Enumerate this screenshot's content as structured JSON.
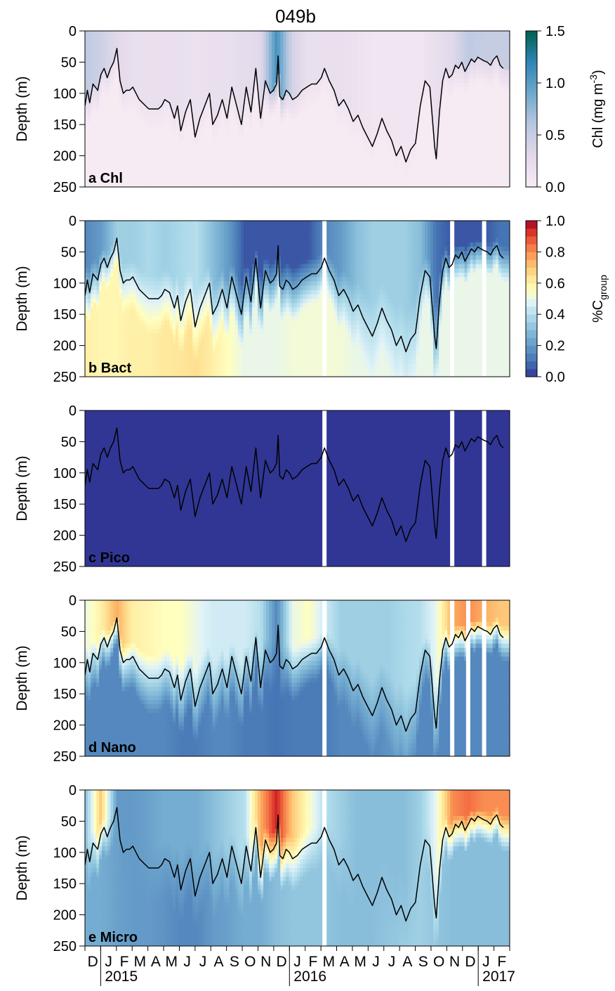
{
  "figure": {
    "title": "049b",
    "years": [
      "2015",
      "2016",
      "2017"
    ],
    "months": [
      "D",
      "J",
      "F",
      "M",
      "A",
      "M",
      "J",
      "J",
      "A",
      "S",
      "O",
      "N",
      "D",
      "J",
      "F",
      "M",
      "A",
      "M",
      "J",
      "J",
      "A",
      "S",
      "O",
      "N",
      "D",
      "J",
      "F"
    ]
  },
  "colorbars": {
    "chl": {
      "label_main": "Chl (mg m",
      "label_sup": "-3",
      "label_close": ")",
      "ticks": [
        "0.0",
        "0.5",
        "1.0",
        "1.5"
      ],
      "range": [
        0,
        1.5
      ]
    },
    "group": {
      "label_main": "%C",
      "label_sub": "group",
      "ticks": [
        "0.0",
        "0.2",
        "0.4",
        "0.6",
        "0.8",
        "1.0"
      ],
      "range": [
        0,
        1
      ]
    }
  },
  "chart_data": [
    {
      "type": "heatmap",
      "panel_label": "a Chl",
      "ylabel": "Depth (m)",
      "yticks": [
        "0",
        "50",
        "100",
        "150",
        "200",
        "250"
      ],
      "ylim": [
        0,
        250
      ],
      "inverted_y": true,
      "colorbar": "chl",
      "value_range": [
        0,
        1.5
      ],
      "gaps": [],
      "x_months": [
        "D",
        "J",
        "F",
        "M",
        "A",
        "M",
        "J",
        "J",
        "A",
        "S",
        "O",
        "N",
        "D",
        "J",
        "F",
        "M",
        "A",
        "M",
        "J",
        "J",
        "A",
        "S",
        "O",
        "N",
        "D",
        "J",
        "F"
      ],
      "overlay_line": "mixed_layer_depth",
      "surface_value_by_month": [
        0.55,
        0.45,
        0.3,
        0.2,
        0.2,
        0.2,
        0.2,
        0.15,
        0.2,
        0.2,
        0.25,
        0.3,
        1.1,
        0.4,
        0.2,
        0.2,
        0.2,
        0.15,
        0.1,
        0.1,
        0.1,
        0.1,
        0.2,
        0.3,
        0.55,
        0.5,
        0.5
      ]
    },
    {
      "type": "heatmap",
      "panel_label": "b Bact",
      "ylabel": "Depth (m)",
      "yticks": [
        "0",
        "50",
        "100",
        "150",
        "200",
        "250"
      ],
      "ylim": [
        0,
        250
      ],
      "inverted_y": true,
      "colorbar": "group",
      "value_range": [
        0,
        1
      ],
      "gaps": [
        "2016-03",
        "2016-11",
        "2017-01"
      ],
      "x_months": [
        "D",
        "J",
        "F",
        "M",
        "A",
        "M",
        "J",
        "J",
        "A",
        "S",
        "O",
        "N",
        "D",
        "J",
        "F",
        "M",
        "A",
        "M",
        "J",
        "J",
        "A",
        "S",
        "O",
        "N",
        "D",
        "J",
        "F"
      ],
      "overlay_line": "mixed_layer_depth",
      "surface_value_by_month": [
        0.15,
        0.2,
        0.35,
        0.35,
        0.38,
        0.35,
        0.38,
        0.4,
        0.3,
        0.2,
        0.05,
        0.05,
        0.05,
        0.05,
        0.05,
        0.15,
        0.2,
        0.3,
        0.35,
        0.35,
        0.35,
        0.3,
        0.1,
        0.05,
        0.05,
        0.05,
        0.1
      ],
      "deep_value_by_month": [
        0.6,
        0.58,
        0.58,
        0.6,
        0.6,
        0.62,
        0.63,
        0.65,
        0.6,
        0.55,
        0.5,
        0.5,
        0.5,
        0.52,
        0.52,
        0.52,
        0.52,
        0.5,
        0.5,
        0.5,
        0.5,
        0.5,
        0.5,
        0.5,
        0.5,
        0.5,
        0.5
      ]
    },
    {
      "type": "heatmap",
      "panel_label": "c Pico",
      "ylabel": "Depth (m)",
      "yticks": [
        "0",
        "50",
        "100",
        "150",
        "200",
        "250"
      ],
      "ylim": [
        0,
        250
      ],
      "inverted_y": true,
      "colorbar": "group",
      "value_range": [
        0,
        1
      ],
      "gaps": [
        "2016-03",
        "2016-11",
        "2017-01"
      ],
      "x_months": [
        "D",
        "J",
        "F",
        "M",
        "A",
        "M",
        "J",
        "J",
        "A",
        "S",
        "O",
        "N",
        "D",
        "J",
        "F",
        "M",
        "A",
        "M",
        "J",
        "J",
        "A",
        "S",
        "O",
        "N",
        "D",
        "J",
        "F"
      ],
      "overlay_line": "mixed_layer_depth",
      "uniform_value": 0.0
    },
    {
      "type": "heatmap",
      "panel_label": "d Nano",
      "ylabel": "Depth (m)",
      "yticks": [
        "0",
        "50",
        "100",
        "150",
        "200",
        "250"
      ],
      "ylim": [
        0,
        250
      ],
      "inverted_y": true,
      "colorbar": "group",
      "value_range": [
        0,
        1
      ],
      "gaps": [
        "2016-03",
        "2016-11",
        "2016-12",
        "2017-01"
      ],
      "x_months": [
        "D",
        "J",
        "F",
        "M",
        "A",
        "M",
        "J",
        "J",
        "A",
        "S",
        "O",
        "N",
        "D",
        "J",
        "F",
        "M",
        "A",
        "M",
        "J",
        "J",
        "A",
        "S",
        "O",
        "N",
        "D",
        "J",
        "F"
      ],
      "overlay_line": "mixed_layer_depth",
      "surface_value_by_month": [
        0.5,
        0.6,
        0.75,
        0.6,
        0.58,
        0.55,
        0.55,
        0.5,
        0.45,
        0.45,
        0.45,
        0.4,
        0.15,
        0.5,
        0.55,
        0.45,
        0.35,
        0.35,
        0.35,
        0.35,
        0.38,
        0.4,
        0.5,
        0.75,
        0.8,
        0.75,
        0.7
      ],
      "deep_value_by_month": [
        0.15,
        0.15,
        0.15,
        0.15,
        0.15,
        0.15,
        0.12,
        0.12,
        0.15,
        0.15,
        0.12,
        0.12,
        0.1,
        0.12,
        0.12,
        0.12,
        0.15,
        0.15,
        0.15,
        0.18,
        0.18,
        0.15,
        0.15,
        0.15,
        0.15,
        0.15,
        0.15
      ]
    },
    {
      "type": "heatmap",
      "panel_label": "e Micro",
      "ylabel": "Depth (m)",
      "yticks": [
        "0",
        "50",
        "100",
        "150",
        "200",
        "250"
      ],
      "ylim": [
        0,
        250
      ],
      "inverted_y": true,
      "colorbar": "group",
      "value_range": [
        0,
        1
      ],
      "gaps": [
        "2016-03"
      ],
      "x_months": [
        "D",
        "J",
        "F",
        "M",
        "A",
        "M",
        "J",
        "J",
        "A",
        "S",
        "O",
        "N",
        "D",
        "J",
        "F",
        "M",
        "A",
        "M",
        "J",
        "J",
        "A",
        "S",
        "O",
        "N",
        "D",
        "J",
        "F"
      ],
      "overlay_line": "mixed_layer_depth",
      "surface_value_by_month": [
        0.3,
        0.7,
        0.2,
        0.2,
        0.22,
        0.25,
        0.25,
        0.25,
        0.3,
        0.35,
        0.4,
        0.75,
        0.95,
        0.7,
        0.55,
        0.4,
        0.35,
        0.3,
        0.3,
        0.3,
        0.3,
        0.35,
        0.5,
        0.8,
        0.85,
        0.8,
        0.8
      ],
      "deep_value_by_month": [
        0.25,
        0.25,
        0.22,
        0.2,
        0.2,
        0.18,
        0.15,
        0.15,
        0.2,
        0.22,
        0.25,
        0.25,
        0.3,
        0.32,
        0.32,
        0.32,
        0.3,
        0.3,
        0.3,
        0.32,
        0.35,
        0.35,
        0.32,
        0.3,
        0.3,
        0.3,
        0.3
      ]
    }
  ],
  "mixed_layer_depth": {
    "units": "m",
    "months_index": [
      0,
      0.15,
      0.3,
      0.5,
      0.8,
      1.0,
      1.2,
      1.4,
      1.6,
      1.8,
      2.0,
      2.2,
      2.4,
      2.6,
      2.8,
      3.0,
      3.4,
      3.8,
      4.0,
      4.3,
      4.6,
      4.8,
      5.0,
      5.3,
      5.6,
      5.8,
      6.0,
      6.3,
      6.6,
      6.9,
      7.2,
      7.5,
      7.8,
      8.0,
      8.3,
      8.6,
      8.9,
      9.2,
      9.5,
      9.8,
      10.1,
      10.4,
      10.7,
      11.0,
      11.3,
      11.6,
      11.8,
      12.0,
      12.1,
      12.2,
      12.4,
      12.6,
      12.8,
      13.0,
      13.3,
      13.6,
      13.9,
      14.2,
      14.5,
      14.8,
      15.0,
      15.3,
      15.6,
      15.9,
      16.2,
      16.5,
      16.8,
      17.1,
      17.4,
      17.7,
      18.0,
      18.3,
      18.6,
      18.9,
      19.2,
      19.5,
      19.8,
      20.1,
      20.4,
      20.7,
      21.0,
      21.3,
      21.6,
      21.9,
      22.0,
      22.2,
      22.4,
      22.6,
      22.8,
      23.0,
      23.2,
      23.4,
      23.6,
      23.8,
      24.0,
      24.2,
      24.4,
      24.6,
      24.8,
      25.0,
      25.2,
      25.4,
      25.6,
      25.8,
      26.0,
      26.2
    ],
    "depth_m": [
      120,
      95,
      115,
      85,
      95,
      70,
      60,
      75,
      60,
      50,
      28,
      80,
      100,
      95,
      95,
      90,
      110,
      120,
      125,
      125,
      125,
      120,
      110,
      115,
      140,
      120,
      160,
      130,
      110,
      170,
      140,
      120,
      100,
      150,
      135,
      110,
      140,
      90,
      120,
      150,
      90,
      130,
      60,
      140,
      80,
      100,
      95,
      85,
      40,
      105,
      110,
      95,
      100,
      110,
      105,
      95,
      90,
      85,
      85,
      75,
      60,
      80,
      95,
      120,
      110,
      125,
      145,
      135,
      155,
      170,
      185,
      165,
      140,
      160,
      175,
      200,
      185,
      210,
      190,
      180,
      120,
      80,
      90,
      185,
      205,
      130,
      80,
      60,
      75,
      70,
      55,
      60,
      50,
      65,
      55,
      45,
      50,
      42,
      45,
      48,
      50,
      55,
      45,
      40,
      55,
      60
    ]
  }
}
